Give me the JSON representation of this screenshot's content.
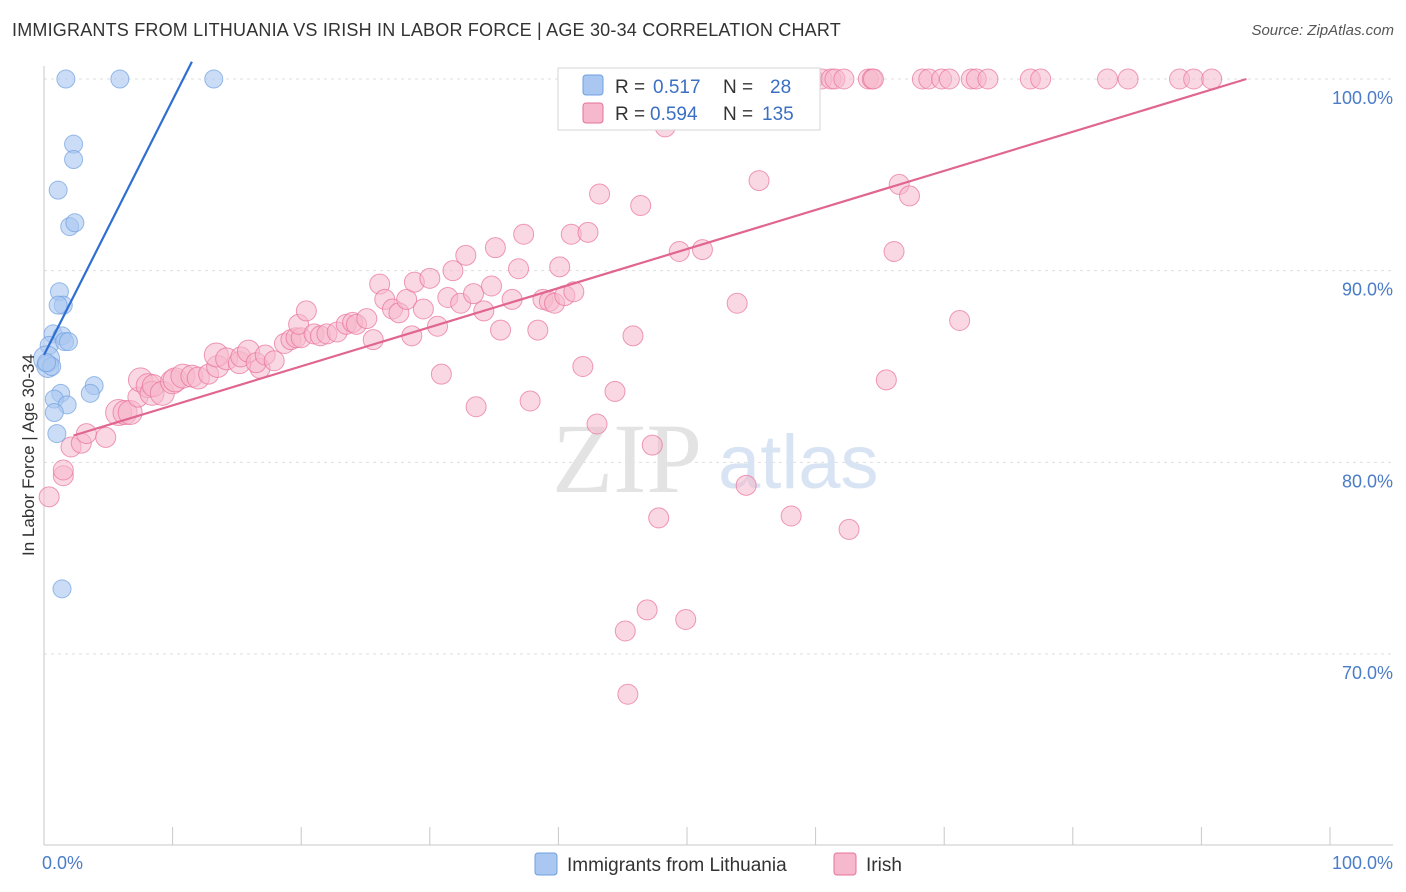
{
  "chart_data": {
    "type": "scatter",
    "title": "IMMIGRANTS FROM LITHUANIA VS IRISH IN LABOR FORCE | AGE 30-34 CORRELATION CHART",
    "source": "Source: ZipAtlas.com",
    "ylabel": "In Labor Force | Age 30-34",
    "xlabel": "",
    "xlim": [
      0,
      100
    ],
    "ylim": [
      60,
      100.9
    ],
    "x_tick_labels": {
      "min": "0.0%",
      "max": "100.0%"
    },
    "y_ticks": [
      {
        "value": 100,
        "label": "100.0%"
      },
      {
        "value": 90,
        "label": "90.0%"
      },
      {
        "value": 80,
        "label": "80.0%"
      },
      {
        "value": 70,
        "label": "70.0%"
      }
    ],
    "watermark": {
      "part1": "ZIP",
      "part2": "atlas"
    },
    "legend_stats": [
      {
        "r_label": "R =",
        "r_value": "0.517",
        "n_label": "N =",
        "n_value": "28"
      },
      {
        "r_label": "R =",
        "r_value": "0.594",
        "n_label": "N =",
        "n_value": "135"
      }
    ],
    "series": [
      {
        "name": "Immigrants from Lithuania",
        "color": "#6f9fe0",
        "fill": "#a9c7f0",
        "trend": {
          "x0": 0,
          "y0": 85.6,
          "x1": 11.5,
          "y1": 100.9
        },
        "points": [
          [
            1.7,
            100
          ],
          [
            5.9,
            100
          ],
          [
            13.2,
            100
          ],
          [
            2.3,
            96.6
          ],
          [
            2.3,
            95.8
          ],
          [
            1.1,
            94.2
          ],
          [
            2.0,
            92.3
          ],
          [
            2.4,
            92.5
          ],
          [
            1.2,
            88.9
          ],
          [
            1.5,
            88.2
          ],
          [
            1.1,
            88.2
          ],
          [
            0.7,
            86.7
          ],
          [
            1.4,
            86.6
          ],
          [
            0.4,
            86.1
          ],
          [
            1.6,
            86.3
          ],
          [
            1.9,
            86.3
          ],
          [
            0.2,
            85.4
          ],
          [
            0.3,
            85.0
          ],
          [
            0.6,
            85.0
          ],
          [
            0.2,
            85.2
          ],
          [
            3.9,
            84.0
          ],
          [
            1.3,
            83.6
          ],
          [
            3.6,
            83.6
          ],
          [
            0.8,
            83.3
          ],
          [
            1.8,
            83.0
          ],
          [
            0.8,
            82.6
          ],
          [
            1.0,
            81.5
          ],
          [
            1.4,
            73.4
          ]
        ],
        "sizes": [
          9,
          9,
          9,
          9,
          9,
          9,
          9,
          9,
          9,
          9,
          9,
          9,
          9,
          9,
          9,
          9,
          13,
          11,
          9,
          9,
          9,
          9,
          9,
          9,
          9,
          9,
          9,
          9
        ]
      },
      {
        "name": "Irish",
        "color": "#e8719a",
        "fill": "#f5b8cc",
        "trend": {
          "x0": 2.3,
          "y0": 81.4,
          "x1": 93.5,
          "y1": 100
        },
        "points": [
          [
            0.4,
            78.2
          ],
          [
            1.5,
            79.3
          ],
          [
            1.5,
            79.6
          ],
          [
            2.1,
            80.8
          ],
          [
            2.9,
            81.0
          ],
          [
            3.3,
            81.5
          ],
          [
            4.8,
            81.3
          ],
          [
            5.8,
            82.6
          ],
          [
            6.3,
            82.6
          ],
          [
            6.7,
            82.6
          ],
          [
            7.3,
            83.4
          ],
          [
            7.5,
            84.3
          ],
          [
            8.1,
            84.0
          ],
          [
            8.4,
            83.6
          ],
          [
            8.5,
            84.0
          ],
          [
            9.2,
            83.6
          ],
          [
            10.0,
            84.2
          ],
          [
            10.2,
            84.3
          ],
          [
            10.8,
            84.5
          ],
          [
            11.5,
            84.5
          ],
          [
            12.0,
            84.4
          ],
          [
            12.8,
            84.6
          ],
          [
            13.5,
            85.0
          ],
          [
            13.4,
            85.6
          ],
          [
            14.2,
            85.4
          ],
          [
            15.2,
            85.2
          ],
          [
            15.3,
            85.5
          ],
          [
            15.9,
            85.8
          ],
          [
            16.8,
            84.9
          ],
          [
            16.5,
            85.2
          ],
          [
            17.2,
            85.6
          ],
          [
            17.9,
            85.3
          ],
          [
            18.7,
            86.2
          ],
          [
            19.2,
            86.4
          ],
          [
            19.6,
            86.5
          ],
          [
            20.0,
            86.5
          ],
          [
            19.8,
            87.2
          ],
          [
            20.4,
            87.9
          ],
          [
            21.0,
            86.7
          ],
          [
            21.5,
            86.6
          ],
          [
            22.0,
            86.7
          ],
          [
            22.8,
            86.8
          ],
          [
            23.5,
            87.2
          ],
          [
            24.0,
            87.3
          ],
          [
            24.3,
            87.2
          ],
          [
            25.1,
            87.5
          ],
          [
            25.6,
            86.4
          ],
          [
            26.1,
            89.3
          ],
          [
            26.5,
            88.5
          ],
          [
            27.1,
            88.0
          ],
          [
            27.6,
            87.8
          ],
          [
            28.2,
            88.5
          ],
          [
            28.6,
            86.6
          ],
          [
            28.8,
            89.4
          ],
          [
            29.5,
            88.0
          ],
          [
            30.0,
            89.6
          ],
          [
            30.6,
            87.1
          ],
          [
            30.9,
            84.6
          ],
          [
            31.4,
            88.6
          ],
          [
            31.8,
            90.0
          ],
          [
            32.4,
            88.3
          ],
          [
            32.8,
            90.8
          ],
          [
            33.4,
            88.8
          ],
          [
            33.6,
            82.9
          ],
          [
            34.2,
            87.9
          ],
          [
            34.8,
            89.2
          ],
          [
            35.1,
            91.2
          ],
          [
            35.5,
            86.9
          ],
          [
            36.4,
            88.5
          ],
          [
            36.9,
            90.1
          ],
          [
            37.3,
            91.9
          ],
          [
            37.8,
            83.2
          ],
          [
            38.4,
            86.9
          ],
          [
            38.8,
            88.5
          ],
          [
            39.3,
            88.4
          ],
          [
            39.7,
            88.3
          ],
          [
            40.1,
            90.2
          ],
          [
            40.5,
            88.7
          ],
          [
            41.0,
            91.9
          ],
          [
            41.2,
            88.9
          ],
          [
            41.9,
            85.0
          ],
          [
            42.3,
            92.0
          ],
          [
            43.0,
            82.0
          ],
          [
            43.2,
            94.0
          ],
          [
            44.4,
            83.7
          ],
          [
            45.2,
            71.2
          ],
          [
            45.4,
            67.9
          ],
          [
            45.8,
            86.6
          ],
          [
            46.4,
            93.4
          ],
          [
            46.9,
            72.3
          ],
          [
            47.3,
            80.9
          ],
          [
            47.8,
            77.1
          ],
          [
            48.3,
            97.5
          ],
          [
            49.4,
            91.0
          ],
          [
            49.9,
            71.8
          ],
          [
            50.4,
            98.5
          ],
          [
            51.2,
            91.1
          ],
          [
            52.2,
            100
          ],
          [
            53.1,
            100
          ],
          [
            53.9,
            88.3
          ],
          [
            54.6,
            78.8
          ],
          [
            55.6,
            94.7
          ],
          [
            56.6,
            100
          ],
          [
            57.1,
            100
          ],
          [
            57.5,
            100
          ],
          [
            58.1,
            77.2
          ],
          [
            59.3,
            100
          ],
          [
            59.8,
            100
          ],
          [
            60.5,
            100
          ],
          [
            61.2,
            100
          ],
          [
            61.5,
            100
          ],
          [
            62.2,
            100
          ],
          [
            62.6,
            76.5
          ],
          [
            64.1,
            100
          ],
          [
            64.4,
            100
          ],
          [
            64.5,
            100
          ],
          [
            65.5,
            84.3
          ],
          [
            66.1,
            91.0
          ],
          [
            66.5,
            94.5
          ],
          [
            67.3,
            93.9
          ],
          [
            68.3,
            100
          ],
          [
            68.8,
            100
          ],
          [
            69.8,
            100
          ],
          [
            70.4,
            100
          ],
          [
            71.2,
            87.4
          ],
          [
            72.1,
            100
          ],
          [
            72.5,
            100
          ],
          [
            73.4,
            100
          ],
          [
            76.7,
            100
          ],
          [
            77.5,
            100
          ],
          [
            82.7,
            100
          ],
          [
            84.3,
            100
          ],
          [
            88.3,
            100
          ],
          [
            89.4,
            100
          ],
          [
            90.8,
            100
          ]
        ],
        "sizes": [
          10,
          10,
          10,
          10,
          10,
          10,
          10,
          13,
          12,
          12,
          10,
          12,
          12,
          12,
          11,
          12,
          12,
          12,
          12,
          11,
          11,
          10,
          11,
          12,
          11,
          11,
          10,
          11,
          10,
          10,
          10,
          10,
          10,
          10,
          10,
          10,
          10,
          10,
          10,
          10,
          10,
          10,
          10,
          10,
          10,
          10,
          10,
          10,
          10,
          10,
          10,
          10,
          10,
          10,
          10,
          10,
          10,
          10,
          10,
          10,
          10,
          10,
          10,
          10,
          10,
          10,
          10,
          10,
          10,
          10,
          10,
          10,
          10,
          10,
          10,
          10,
          10,
          10,
          10,
          10,
          10,
          10,
          10,
          10,
          10,
          10,
          10,
          10,
          10,
          10,
          10,
          10,
          10,
          10,
          10,
          10,
          10,
          10,
          10,
          10,
          10,
          10,
          10,
          10,
          10,
          10,
          10,
          10,
          10,
          10,
          10,
          10,
          10,
          10,
          10,
          10,
          10,
          10,
          10,
          10,
          10,
          10,
          10,
          10,
          10,
          10,
          10,
          10,
          10,
          10,
          10,
          10,
          10,
          10,
          10
        ]
      }
    ]
  }
}
